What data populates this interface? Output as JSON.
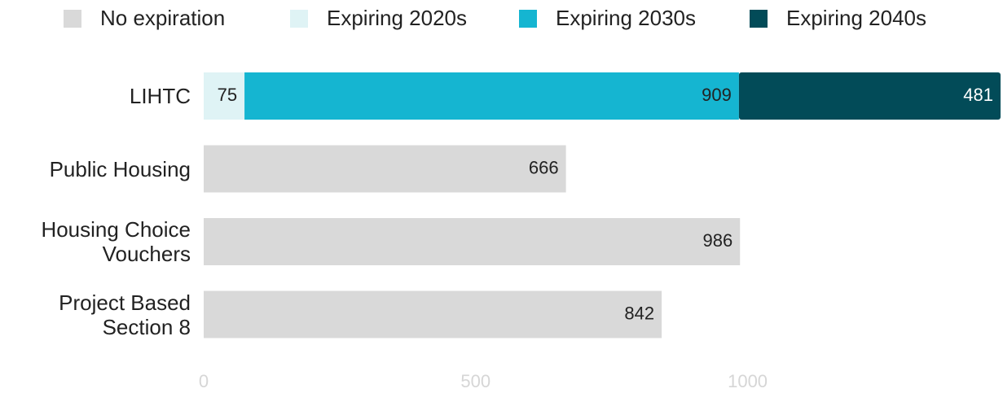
{
  "chart_data": {
    "type": "stacked-barh",
    "categories": [
      "LIHTC",
      "Public Housing",
      "Housing Choice Vouchers",
      "Project Based Section 8"
    ],
    "series": [
      {
        "name": "No expiration",
        "color": "#d9d9d9",
        "values": [
          null,
          666,
          986,
          842
        ]
      },
      {
        "name": "Expiring 2020s",
        "color": "#dff3f5",
        "values": [
          75,
          null,
          null,
          null
        ]
      },
      {
        "name": "Expiring 2030s",
        "color": "#15b5d1",
        "values": [
          909,
          null,
          null,
          null
        ]
      },
      {
        "name": "Expiring 2040s",
        "color": "#024b58",
        "values": [
          481,
          null,
          null,
          null
        ]
      }
    ],
    "xlim": [
      0,
      1465
    ],
    "xticks": [
      0,
      500,
      1000
    ],
    "legend": "top"
  }
}
